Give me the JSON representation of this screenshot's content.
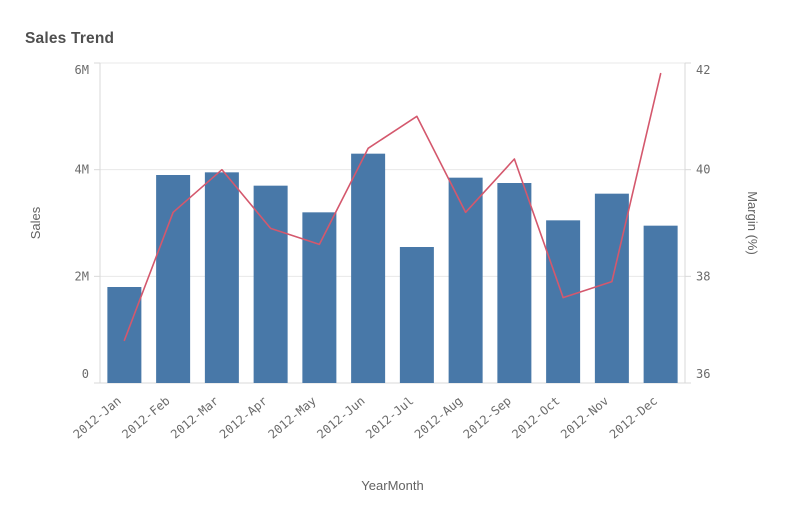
{
  "chart": {
    "title": "Sales Trend"
  },
  "chart_data": {
    "type": "combo",
    "title": "Sales Trend",
    "categories": [
      "2012-Jan",
      "2012-Feb",
      "2012-Mar",
      "2012-Apr",
      "2012-May",
      "2012-Jun",
      "2012-Jul",
      "2012-Aug",
      "2012-Sep",
      "2012-Oct",
      "2012-Nov",
      "2012-Dec"
    ],
    "series": [
      {
        "name": "Sales",
        "type": "bar",
        "axis": "left",
        "unit": "M",
        "values": [
          1.8,
          3.9,
          3.95,
          3.7,
          3.2,
          4.3,
          2.55,
          3.85,
          3.75,
          3.05,
          3.55,
          2.95
        ],
        "color": "#4878a8"
      },
      {
        "name": "Margin (%)",
        "type": "line",
        "axis": "right",
        "unit": "%",
        "values": [
          36.8,
          39.2,
          40.0,
          38.9,
          38.6,
          40.4,
          41.0,
          39.2,
          40.2,
          37.6,
          37.9,
          41.8
        ],
        "color": "#d4586d"
      }
    ],
    "xlabel": "YearMonth",
    "left_axis": {
      "label": "Sales",
      "tick_labels": [
        "0",
        "2M",
        "4M",
        "6M"
      ],
      "tick_values": [
        0,
        2,
        4,
        6
      ],
      "range": [
        0,
        6
      ]
    },
    "right_axis": {
      "label": "Margin (%)",
      "tick_labels": [
        "36",
        "38",
        "40",
        "42"
      ],
      "tick_values": [
        36,
        38,
        40,
        42
      ],
      "range": [
        36,
        42
      ]
    },
    "grid": true,
    "legend": "none"
  },
  "colors": {
    "bar": "#4878a8",
    "line": "#d4586d",
    "gridline": "#e8e8e8",
    "axis_line": "#d9d9d9",
    "tick_text": "#6b6b6b",
    "title_text": "#4f4f4f"
  }
}
